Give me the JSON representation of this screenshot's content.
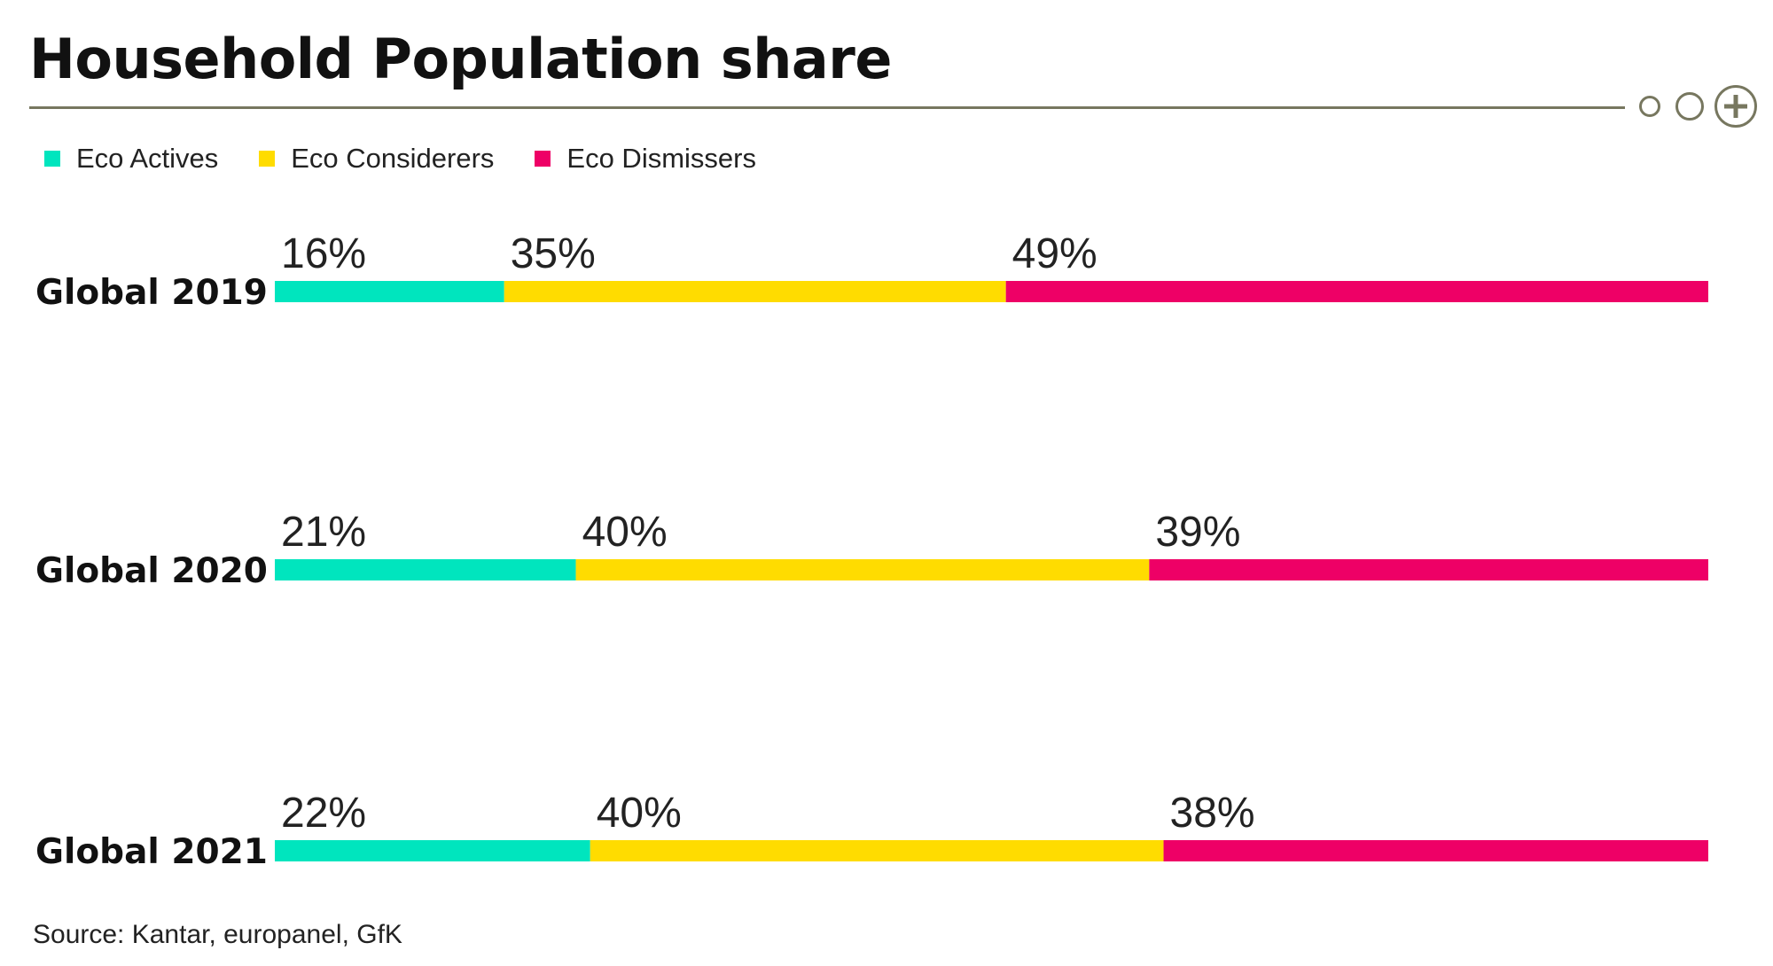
{
  "chart_data": {
    "type": "bar",
    "stacked": true,
    "orientation": "horizontal",
    "title": "Household Population share",
    "categories": [
      "Global 2019",
      "Global 2020",
      "Global 2021"
    ],
    "series": [
      {
        "name": "Eco Actives",
        "color": "#00e5be",
        "values": [
          16,
          21,
          22
        ]
      },
      {
        "name": "Eco Considerers",
        "color": "#ffdc00",
        "values": [
          35,
          40,
          40
        ]
      },
      {
        "name": "Eco Dismissers",
        "color": "#ee0066",
        "values": [
          49,
          39,
          38
        ]
      }
    ],
    "value_labels": [
      [
        "16%",
        "35%",
        "49%"
      ],
      [
        "21%",
        "40%",
        "39%"
      ],
      [
        "22%",
        "40%",
        "38%"
      ]
    ],
    "xlim": [
      0,
      100
    ],
    "grid": false,
    "legend_position": "top-left",
    "source": "Source: Kantar, europanel, GfK"
  },
  "controls": {
    "icons": [
      "circle-outline-icon",
      "circle-outline-icon",
      "plus-circle-icon"
    ]
  }
}
